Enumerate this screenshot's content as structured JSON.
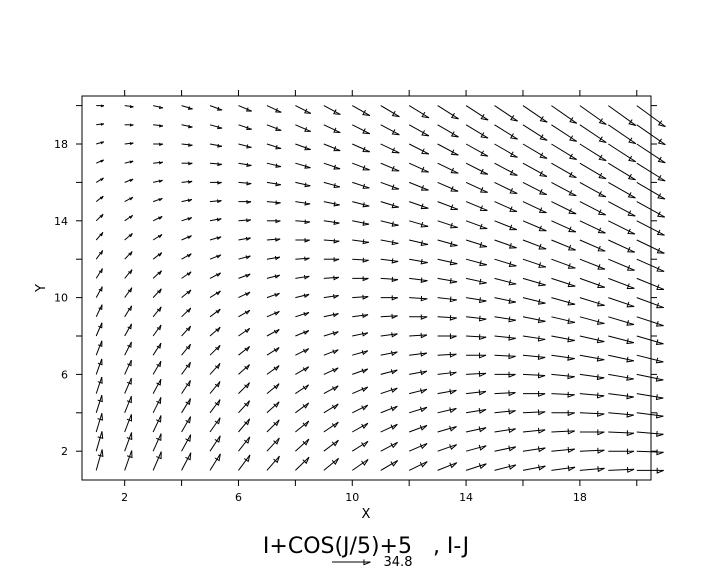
{
  "chart_data": {
    "type": "vector_field",
    "title": "I+COS(J/5)+5   , I-J",
    "u_expression": "I+COS(J/5)+5",
    "v_expression": "I-J",
    "xlabel": "X",
    "ylabel": "Y",
    "xlim": [
      0.5,
      20.5
    ],
    "ylim": [
      0.5,
      20.5
    ],
    "x_ticks": [
      2,
      6,
      10,
      14,
      18
    ],
    "y_ticks": [
      2,
      6,
      10,
      14,
      18
    ],
    "i_range": [
      1,
      20
    ],
    "j_range": [
      1,
      20
    ],
    "reference_vector_magnitude": 34.8,
    "reference_vector_label": "34.8",
    "arrow_color": "#000000"
  }
}
